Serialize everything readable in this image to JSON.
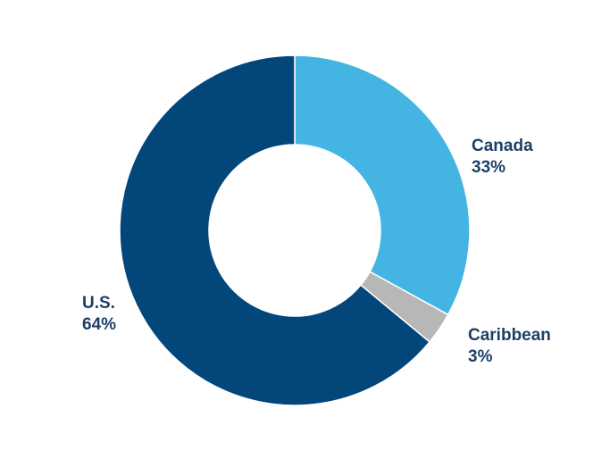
{
  "chart_data": {
    "type": "pie",
    "variant": "donut",
    "categories": [
      "Canada",
      "Caribbean",
      "U.S."
    ],
    "values": [
      33,
      3,
      64
    ],
    "value_labels": [
      "33%",
      "3%",
      "64%"
    ],
    "colors": [
      "#44b5e3",
      "#b7b7b7",
      "#03467a"
    ],
    "label_color": "#1e3f66",
    "start_angle_deg": 0,
    "direction": "clockwise",
    "title": ""
  }
}
